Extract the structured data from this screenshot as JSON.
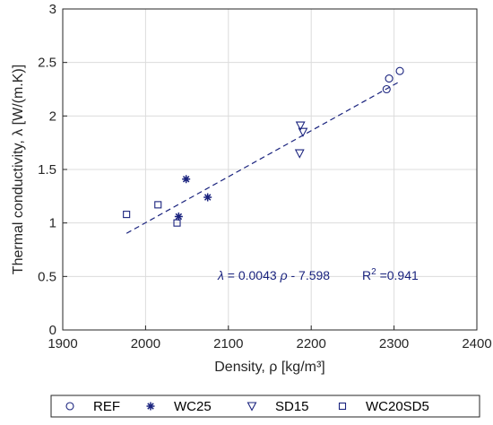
{
  "chart_data": {
    "type": "scatter",
    "xlabel": "Density, ρ [kg/m³]",
    "ylabel": "Thermal conductivity, λ [W/(m.K)]",
    "xlim": [
      1900,
      2400
    ],
    "ylim": [
      0,
      3
    ],
    "xticks": [
      "1900",
      "2000",
      "2100",
      "2200",
      "2300",
      "2400"
    ],
    "yticks": [
      "0",
      "0.5",
      "1",
      "1.5",
      "2",
      "2.5",
      "3"
    ],
    "grid": true,
    "marker_color": "#1a237e",
    "series": [
      {
        "name": "REF",
        "marker": "circle",
        "points": [
          [
            2291,
            2.25
          ],
          [
            2294,
            2.35
          ],
          [
            2307,
            2.42
          ]
        ]
      },
      {
        "name": "WC25",
        "marker": "asterisk",
        "points": [
          [
            2040,
            1.06
          ],
          [
            2049,
            1.41
          ],
          [
            2075,
            1.24
          ]
        ]
      },
      {
        "name": "SD15",
        "marker": "triangle-down",
        "points": [
          [
            2186,
            1.65
          ],
          [
            2187,
            1.91
          ],
          [
            2190,
            1.85
          ]
        ]
      },
      {
        "name": "WC20SD5",
        "marker": "square",
        "points": [
          [
            1977,
            1.08
          ],
          [
            2015,
            1.17
          ],
          [
            2038,
            1.0
          ]
        ]
      }
    ],
    "fit_line": {
      "slope": 0.0043,
      "intercept": -7.598,
      "x_range": [
        1977,
        2307
      ],
      "style": "dashed"
    },
    "annotations": {
      "equation_lambda": "λ",
      "equation_rest": " = 0.0043 ",
      "equation_rho": "ρ",
      "equation_tail": " - 7.598",
      "r2_prefix": "R",
      "r2_sup": "2",
      "r2_value": " =0.941"
    },
    "legend_position": "bottom-outside"
  }
}
